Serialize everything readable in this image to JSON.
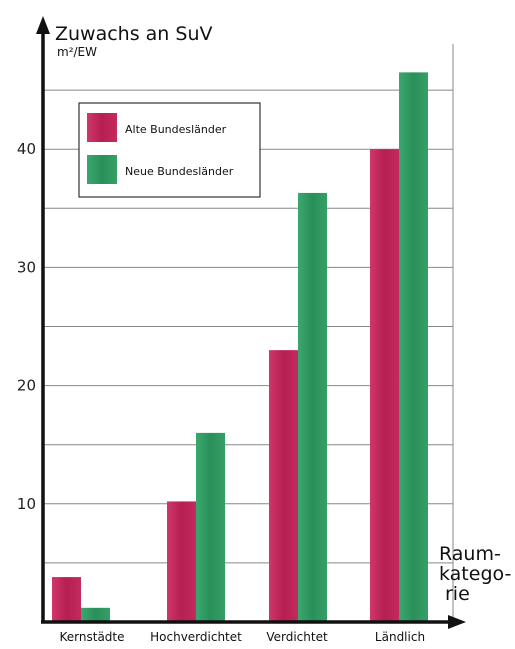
{
  "chart_data": {
    "type": "bar",
    "title": "Zuwachs an SuV",
    "ylabel": "m²/EW",
    "xlabel_lines": [
      "Raum-",
      "katego-",
      "rie"
    ],
    "categories": [
      "Kernstädte",
      "Hochverdichtet",
      "Verdichtet",
      "Ländlich"
    ],
    "series": [
      {
        "name": "Alte Bundesländer",
        "values": [
          3.8,
          10.2,
          23,
          40
        ]
      },
      {
        "name": "Neue Bundesländer",
        "values": [
          1.2,
          16,
          36.3,
          46.5
        ]
      }
    ],
    "ylim": [
      0,
      50
    ],
    "yticks": [
      10,
      20,
      30,
      40
    ],
    "grid": true,
    "legend_position": "top-left",
    "colors": {
      "alte": "#c2255a",
      "neue": "#2e9a62",
      "axis": "#111111",
      "grid": "#888888"
    }
  }
}
